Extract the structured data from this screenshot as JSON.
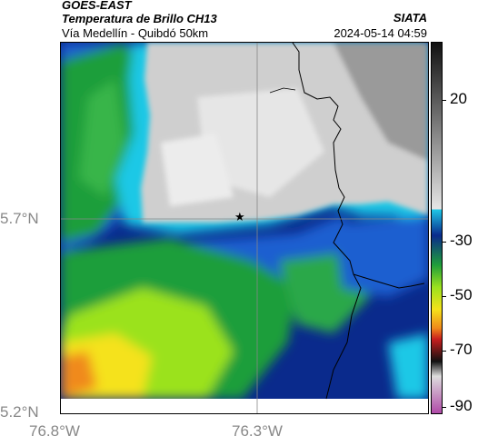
{
  "header": {
    "satellite": "GOES-EAST",
    "product": "Temperatura de Brillo CH13",
    "subtitle": "Vía Medellín - Quibdó 50km",
    "organization": "SIATA",
    "datetime": "2024-05-14 04:59"
  },
  "map": {
    "lat_labels": [
      "5.7°N",
      "5.2°N"
    ],
    "lon_labels": [
      "76.8°W",
      "76.3°W"
    ],
    "marker_icon": "star-icon"
  },
  "colorbar": {
    "tick_labels": [
      "20",
      "-30",
      "-50",
      "-70",
      "-90"
    ],
    "palette": {
      "warm_gray": "#c8c8c8",
      "dark_blue": "#0a2a8c",
      "blue": "#1a5fd0",
      "cyan": "#1ec8e6",
      "green": "#1f9e3a",
      "lime": "#9be21e",
      "yellow": "#f5e21a",
      "orange": "#f08a1a",
      "red": "#c81e1e",
      "black": "#111111",
      "magenta": "#b04aa8"
    }
  }
}
